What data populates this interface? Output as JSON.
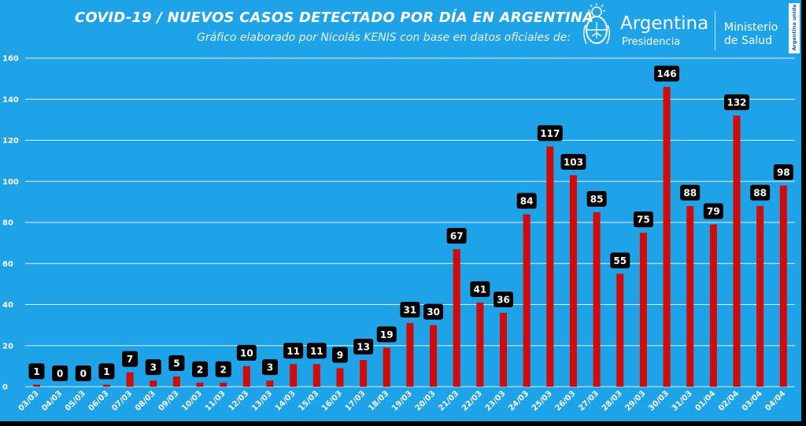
{
  "header": {
    "title": "COVID-19  /  NUEVOS CASOS DETECTADO POR DÍA EN ARGENTINA",
    "subtitle": "Gráfico elaborado por Nicolás KENIS con base en datos oficiales de:",
    "logo_name": "Argentina",
    "logo_sub": "Presidencia",
    "ministry_line1": "Ministerio",
    "ministry_line2": "de Salud",
    "badge_text": "Argentina unida",
    "logo_icon": "argentina-coat-of-arms-icon"
  },
  "colors": {
    "background": "#1ea2e8",
    "bar": "#d10a0a",
    "label_box": "#000000",
    "gridline": "#ffffff"
  },
  "chart_data": {
    "type": "bar",
    "title": "COVID-19  /  NUEVOS CASOS DETECTADO POR DÍA EN ARGENTINA",
    "xlabel": "",
    "ylabel": "",
    "ylim": [
      0,
      160
    ],
    "yticks": [
      0,
      20,
      40,
      60,
      80,
      100,
      120,
      140,
      160
    ],
    "grid": true,
    "legend": "none",
    "categories": [
      "03/03",
      "04/03",
      "05/03",
      "06/03",
      "07/03",
      "08/03",
      "09/03",
      "10/03",
      "11/03",
      "12/03",
      "13/03",
      "14/03",
      "15/03",
      "16/03",
      "17/03",
      "18/03",
      "19/03",
      "20/03",
      "21/03",
      "22/03",
      "23/03",
      "24/03",
      "25/03",
      "26/03",
      "27/03",
      "28/03",
      "29/03",
      "30/03",
      "31/03",
      "01/04",
      "02/04",
      "03/04",
      "04/04"
    ],
    "values": [
      1,
      0,
      0,
      1,
      7,
      3,
      5,
      2,
      2,
      10,
      3,
      11,
      11,
      9,
      13,
      19,
      31,
      30,
      67,
      41,
      36,
      84,
      117,
      103,
      85,
      55,
      75,
      146,
      88,
      79,
      132,
      88,
      98
    ]
  }
}
